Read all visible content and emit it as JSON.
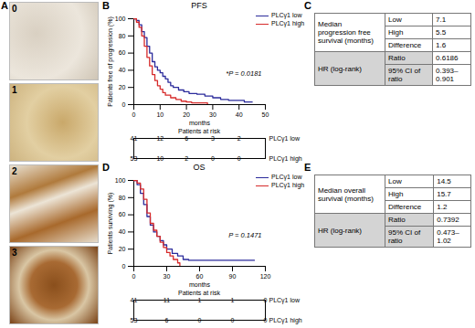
{
  "panel_a": {
    "label": "A",
    "scores": [
      "0",
      "1",
      "2",
      "3"
    ]
  },
  "chart_data": [
    {
      "panel": "B",
      "type": "line",
      "line_style": "step",
      "title": "PFS",
      "x_label": "months",
      "y_label": "Patients free of progression (%)",
      "xlim": [
        0,
        50
      ],
      "xticks": [
        0,
        10,
        20,
        30,
        40,
        50
      ],
      "ylim": [
        0,
        100
      ],
      "yticks": [
        0,
        20,
        40,
        60,
        80,
        100
      ],
      "annotation": "*P = 0.0181",
      "legend": "top-right",
      "series": [
        {
          "name": "PLCγ1 low",
          "color": "#2b2b9b",
          "x": [
            0,
            1,
            2,
            3,
            4,
            5,
            6,
            7,
            8,
            9,
            10,
            11,
            12,
            13,
            14,
            15,
            17,
            19,
            21,
            24,
            27,
            30,
            33,
            36,
            42,
            45
          ],
          "values": [
            100,
            98,
            93,
            85,
            78,
            68,
            60,
            50,
            44,
            40,
            37,
            33,
            30,
            26,
            22,
            20,
            17,
            15,
            13,
            12,
            10,
            8,
            6,
            5,
            3,
            3
          ]
        },
        {
          "name": "PLCγ1 high",
          "color": "#d62a2a",
          "x": [
            0,
            1,
            2,
            3,
            4,
            5,
            6,
            7,
            8,
            9,
            10,
            11,
            12,
            14,
            16,
            18,
            20,
            22,
            25,
            28
          ],
          "values": [
            100,
            96,
            90,
            80,
            68,
            55,
            45,
            35,
            28,
            22,
            18,
            14,
            11,
            8,
            6,
            4,
            3,
            2,
            2,
            0
          ]
        }
      ],
      "risk_table": {
        "title": "Patients at risk",
        "times": [
          0,
          10,
          20,
          30,
          40
        ],
        "rows": [
          {
            "name": "PLCγ1 low",
            "values": [
              41,
              12,
              6,
              3,
              2
            ]
          },
          {
            "name": "PLCγ1 high",
            "values": [
              53,
              10,
              2,
              0,
              0
            ]
          }
        ]
      }
    },
    {
      "panel": "D",
      "type": "line",
      "line_style": "step",
      "title": "OS",
      "x_label": "months",
      "y_label": "Patients surviving (%)",
      "xlim": [
        0,
        120
      ],
      "xticks": [
        0,
        30,
        60,
        90,
        120
      ],
      "ylim": [
        0,
        100
      ],
      "yticks": [
        0,
        20,
        40,
        60,
        80,
        100
      ],
      "annotation": "P = 0.1471",
      "legend": "top-right",
      "series": [
        {
          "name": "PLCγ1 low",
          "color": "#2b2b9b",
          "x": [
            0,
            3,
            6,
            9,
            12,
            15,
            18,
            21,
            24,
            27,
            30,
            35,
            40,
            45,
            50,
            110
          ],
          "values": [
            100,
            95,
            85,
            72,
            58,
            48,
            40,
            35,
            30,
            25,
            20,
            15,
            12,
            8,
            7,
            7
          ]
        },
        {
          "name": "PLCγ1 high",
          "color": "#d62a2a",
          "x": [
            0,
            3,
            6,
            9,
            12,
            15,
            18,
            21,
            24,
            27,
            30,
            33,
            36,
            40,
            42
          ],
          "values": [
            100,
            97,
            90,
            78,
            62,
            50,
            42,
            35,
            28,
            22,
            16,
            12,
            8,
            4,
            0
          ]
        }
      ],
      "risk_table": {
        "title": "Patients at risk",
        "times": [
          0,
          30,
          60,
          90,
          120
        ],
        "rows": [
          {
            "name": "PLCγ1 low",
            "values": [
              41,
              11,
              1,
              1,
              0
            ]
          },
          {
            "name": "PLCγ1 high",
            "values": [
              53,
              6,
              0,
              0,
              0
            ]
          }
        ]
      }
    }
  ],
  "tables": [
    {
      "panel": "C",
      "groups": [
        {
          "label": "Median progression free survival (months)",
          "rows": [
            [
              "Low",
              "7.1"
            ],
            [
              "High",
              "5.5"
            ],
            [
              "Difference",
              "1.6"
            ]
          ]
        },
        {
          "label": "HR (log-rank)",
          "rows": [
            [
              "Ratio",
              "0.6186"
            ],
            [
              "95% CI of ratio",
              "0.393–0.901"
            ]
          ]
        }
      ]
    },
    {
      "panel": "E",
      "groups": [
        {
          "label": "Median overall survival (months)",
          "rows": [
            [
              "Low",
              "14.5"
            ],
            [
              "High",
              "15.7"
            ],
            [
              "Difference",
              "1.2"
            ]
          ]
        },
        {
          "label": "HR (log-rank)",
          "rows": [
            [
              "Ratio",
              "0.7392"
            ],
            [
              "95% CI of ratio",
              "0.473–1.02"
            ]
          ]
        }
      ]
    }
  ]
}
